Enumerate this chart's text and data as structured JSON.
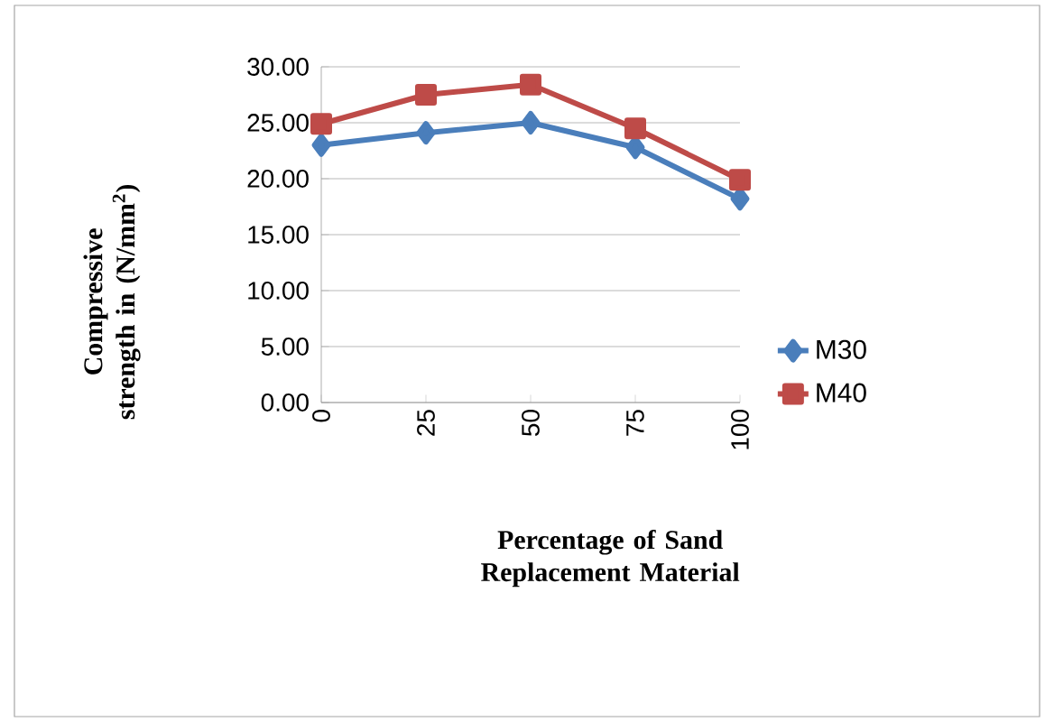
{
  "chart_data": {
    "type": "line",
    "ylabel": "Compressive strength in (N/mm$^{2}$)",
    "xlabel": "Percentage of Sand Replacement Material",
    "categories": [
      "0",
      "25",
      "50",
      "75",
      "100"
    ],
    "series": [
      {
        "name": "M30",
        "color": "#4a7ebb",
        "marker": "diamond",
        "values": [
          23.0,
          24.1,
          25.0,
          22.8,
          18.2
        ]
      },
      {
        "name": "M40",
        "color": "#be4b48",
        "marker": "square",
        "values": [
          24.9,
          27.5,
          28.4,
          24.5,
          19.9
        ]
      }
    ],
    "ylim": [
      0,
      30
    ],
    "yticks": [
      {
        "value": 0,
        "label": "0.00"
      },
      {
        "value": 5,
        "label": "5.00"
      },
      {
        "value": 10,
        "label": "10.00"
      },
      {
        "value": 15,
        "label": "15.00"
      },
      {
        "value": 20,
        "label": "20.00"
      },
      {
        "value": 25,
        "label": "25.00"
      },
      {
        "value": 30,
        "label": "30.00"
      }
    ],
    "grid": "y",
    "legend": "right"
  }
}
